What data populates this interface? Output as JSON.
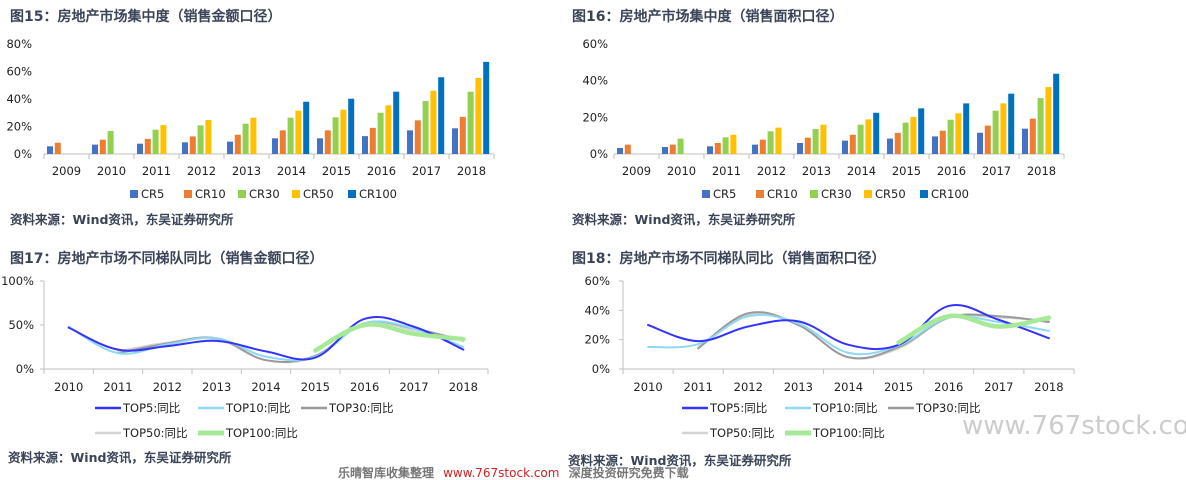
{
  "colors": {
    "CR5": "#4472C4",
    "CR10": "#ED7D31",
    "CR30": "#92D050",
    "CR50": "#FFC000",
    "CR100": "#0070C0",
    "TOP5": "#3333FF",
    "TOP10": "#8ED8F6",
    "TOP30": "#9a9a9a",
    "TOP50": "#d4d4d4",
    "TOP100": "#A6EA98"
  },
  "chart_data": [
    {
      "id": "fig15",
      "type": "bar",
      "title": "图15：房地产市场集中度（销售金额口径）",
      "source": "资料来源：Wind资讯，东吴证券研究所",
      "categories": [
        "2009",
        "2010",
        "2011",
        "2012",
        "2013",
        "2014",
        "2015",
        "2016",
        "2017",
        "2018"
      ],
      "ylim": [
        0,
        80
      ],
      "yticks": [
        "0%",
        "20%",
        "40%",
        "60%",
        "80%"
      ],
      "ytick_values": [
        0,
        20,
        40,
        60,
        80
      ],
      "legend_position": "bottom",
      "series": [
        {
          "name": "CR5",
          "values": [
            5.6,
            6.8,
            7.5,
            8.5,
            9.0,
            11.4,
            11.4,
            13.0,
            17.2,
            18.7
          ]
        },
        {
          "name": "CR10",
          "values": [
            8.2,
            10.4,
            11.0,
            12.8,
            14.0,
            17.2,
            17.2,
            19.0,
            24.5,
            27.0
          ]
        },
        {
          "name": "CR30",
          "values": [
            null,
            16.7,
            17.7,
            20.8,
            22.0,
            26.4,
            26.7,
            30.0,
            38.5,
            45.3
          ]
        },
        {
          "name": "CR50",
          "values": [
            null,
            null,
            21.0,
            24.7,
            26.4,
            31.5,
            32.2,
            35.4,
            46.0,
            55.3
          ]
        },
        {
          "name": "CR100",
          "values": [
            null,
            null,
            null,
            null,
            null,
            38.0,
            40.2,
            45.3,
            55.8,
            67.0
          ]
        }
      ]
    },
    {
      "id": "fig16",
      "type": "bar",
      "title": "图16：房地产市场集中度（销售面积口径）",
      "source": "资料来源：Wind资讯，东吴证券研究所",
      "categories": [
        "2009",
        "2010",
        "2011",
        "2012",
        "2013",
        "2014",
        "2015",
        "2016",
        "2017",
        "2018"
      ],
      "ylim": [
        0,
        60
      ],
      "yticks": [
        "0%",
        "20%",
        "40%",
        "60%"
      ],
      "ytick_values": [
        0,
        20,
        40,
        60
      ],
      "legend_position": "bottom",
      "series": [
        {
          "name": "CR5",
          "values": [
            3.3,
            3.8,
            4.2,
            5.1,
            6.0,
            7.3,
            8.4,
            9.6,
            11.6,
            13.8
          ]
        },
        {
          "name": "CR10",
          "values": [
            5.1,
            5.1,
            6.0,
            7.8,
            8.9,
            10.5,
            11.5,
            12.7,
            15.5,
            19.3
          ]
        },
        {
          "name": "CR30",
          "values": [
            null,
            8.4,
            9.1,
            12.4,
            13.6,
            16.0,
            17.1,
            18.7,
            23.6,
            30.5
          ]
        },
        {
          "name": "CR50",
          "values": [
            null,
            null,
            10.5,
            14.4,
            16.0,
            18.9,
            20.2,
            22.2,
            27.6,
            36.5
          ]
        },
        {
          "name": "CR100",
          "values": [
            null,
            null,
            null,
            null,
            null,
            22.5,
            24.9,
            27.6,
            32.9,
            43.8
          ]
        }
      ]
    },
    {
      "id": "fig17",
      "type": "line",
      "title": "图17：房地产市场不同梯队同比（销售金额口径）",
      "source": "资料来源：Wind资讯，东吴证券研究所",
      "categories": [
        "2010",
        "2011",
        "2012",
        "2013",
        "2014",
        "2015",
        "2016",
        "2017",
        "2018"
      ],
      "ylim": [
        0,
        100
      ],
      "yticks": [
        "0%",
        "50%",
        "100%"
      ],
      "ytick_values": [
        0,
        50,
        100
      ],
      "legend_position": "bottom",
      "series": [
        {
          "name": "TOP5:同比",
          "key": "TOP5",
          "values": [
            47,
            22,
            26,
            32,
            20,
            13,
            57,
            48,
            22
          ]
        },
        {
          "name": "TOP10:同比",
          "key": "TOP10",
          "values": [
            48,
            18,
            28,
            35,
            14,
            14,
            52,
            46,
            25
          ]
        },
        {
          "name": "TOP30:同比",
          "key": "TOP30",
          "values": [
            null,
            18,
            29,
            35,
            10,
            15,
            52,
            46,
            32
          ]
        },
        {
          "name": "TOP50:同比",
          "key": "TOP50",
          "values": [
            null,
            20,
            30,
            34,
            10,
            14,
            52,
            44,
            34
          ]
        },
        {
          "name": "TOP100:同比",
          "key": "TOP100",
          "values": [
            null,
            null,
            null,
            null,
            null,
            21,
            50,
            40,
            34
          ]
        }
      ]
    },
    {
      "id": "fig18",
      "type": "line",
      "title": "图18：房地产市场不同梯队同比（销售面积口径）",
      "source": "资料来源：Wind资讯，东吴证券研究所",
      "categories": [
        "2010",
        "2011",
        "2012",
        "2013",
        "2014",
        "2015",
        "2016",
        "2017",
        "2018"
      ],
      "ylim": [
        0,
        60
      ],
      "yticks": [
        "0%",
        "20%",
        "40%",
        "60%"
      ],
      "ytick_values": [
        0,
        20,
        40,
        60
      ],
      "legend_position": "bottom",
      "series": [
        {
          "name": "TOP5:同比",
          "key": "TOP5",
          "values": [
            30,
            19,
            29,
            32.5,
            16.5,
            16.5,
            43,
            33.5,
            21
          ]
        },
        {
          "name": "TOP10:同比",
          "key": "TOP10",
          "values": [
            15,
            17,
            36,
            31,
            11,
            16,
            35,
            32,
            26
          ]
        },
        {
          "name": "TOP30:同比",
          "key": "TOP30",
          "values": [
            null,
            14,
            38,
            30,
            8,
            15,
            35,
            36,
            32
          ]
        },
        {
          "name": "TOP50:同比",
          "key": "TOP50",
          "values": [
            null,
            15,
            37,
            30,
            8,
            14,
            35,
            35,
            33
          ]
        },
        {
          "name": "TOP100:同比",
          "key": "TOP100",
          "values": [
            null,
            null,
            null,
            null,
            null,
            18,
            36,
            29,
            35
          ]
        }
      ]
    }
  ],
  "watermark": {
    "left": "乐晴智库收集整理",
    "url": "www.767stock.com",
    "right": "深度投资研究免费下载",
    "big": "www.767stock.com"
  }
}
